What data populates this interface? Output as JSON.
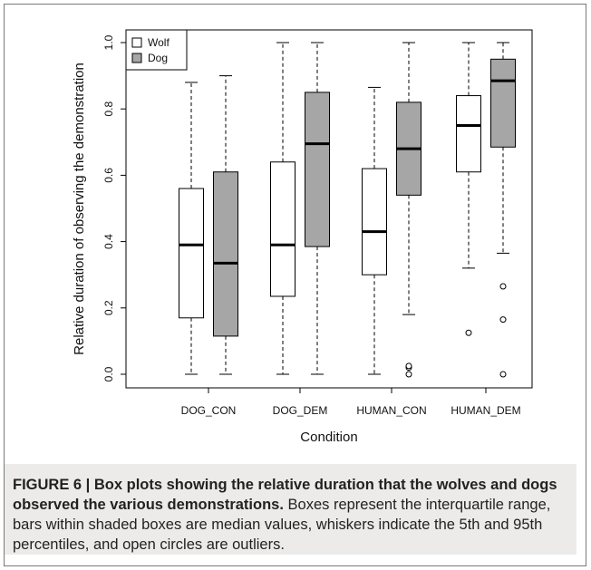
{
  "chart_data": {
    "type": "box",
    "xlabel": "Condition",
    "ylabel": "Relative duration of observing the demonstration",
    "ylim": [
      0,
      1
    ],
    "yticks": [
      "0.0",
      "0.2",
      "0.4",
      "0.6",
      "0.8",
      "1.0"
    ],
    "categories": [
      "DOG_CON",
      "DOG_DEM",
      "HUMAN_CON",
      "HUMAN_DEM"
    ],
    "legend_position": "top-left",
    "series": [
      {
        "name": "Wolf",
        "color": "#ffffff",
        "boxes": [
          {
            "whisker_low": 0.0,
            "q1": 0.17,
            "median": 0.39,
            "q3": 0.56,
            "whisker_high": 0.88,
            "outliers": []
          },
          {
            "whisker_low": 0.0,
            "q1": 0.235,
            "median": 0.39,
            "q3": 0.64,
            "whisker_high": 1.0,
            "outliers": []
          },
          {
            "whisker_low": 0.0,
            "q1": 0.3,
            "median": 0.43,
            "q3": 0.62,
            "whisker_high": 0.865,
            "outliers": []
          },
          {
            "whisker_low": 0.32,
            "q1": 0.61,
            "median": 0.75,
            "q3": 0.84,
            "whisker_high": 1.0,
            "outliers": [
              0.125
            ]
          }
        ]
      },
      {
        "name": "Dog",
        "color": "#a6a6a6",
        "boxes": [
          {
            "whisker_low": 0.0,
            "q1": 0.115,
            "median": 0.335,
            "q3": 0.61,
            "whisker_high": 0.9,
            "outliers": []
          },
          {
            "whisker_low": 0.0,
            "q1": 0.385,
            "median": 0.695,
            "q3": 0.85,
            "whisker_high": 1.0,
            "outliers": []
          },
          {
            "whisker_low": 0.18,
            "q1": 0.54,
            "median": 0.68,
            "q3": 0.82,
            "whisker_high": 1.0,
            "outliers": [
              0.0,
              0.02,
              0.025
            ]
          },
          {
            "whisker_low": 0.365,
            "q1": 0.685,
            "median": 0.885,
            "q3": 0.95,
            "whisker_high": 1.0,
            "outliers": [
              0.0,
              0.165,
              0.265
            ]
          }
        ]
      }
    ]
  },
  "caption": {
    "lead": "FIGURE 6 | Box plots showing the relative duration that the wolves and dogs observed the various demonstrations.",
    "body": " Boxes represent the interquartile range, bars within shaded boxes are median values, whiskers indicate the 5th and 95th percentiles, and open circles are outliers."
  }
}
